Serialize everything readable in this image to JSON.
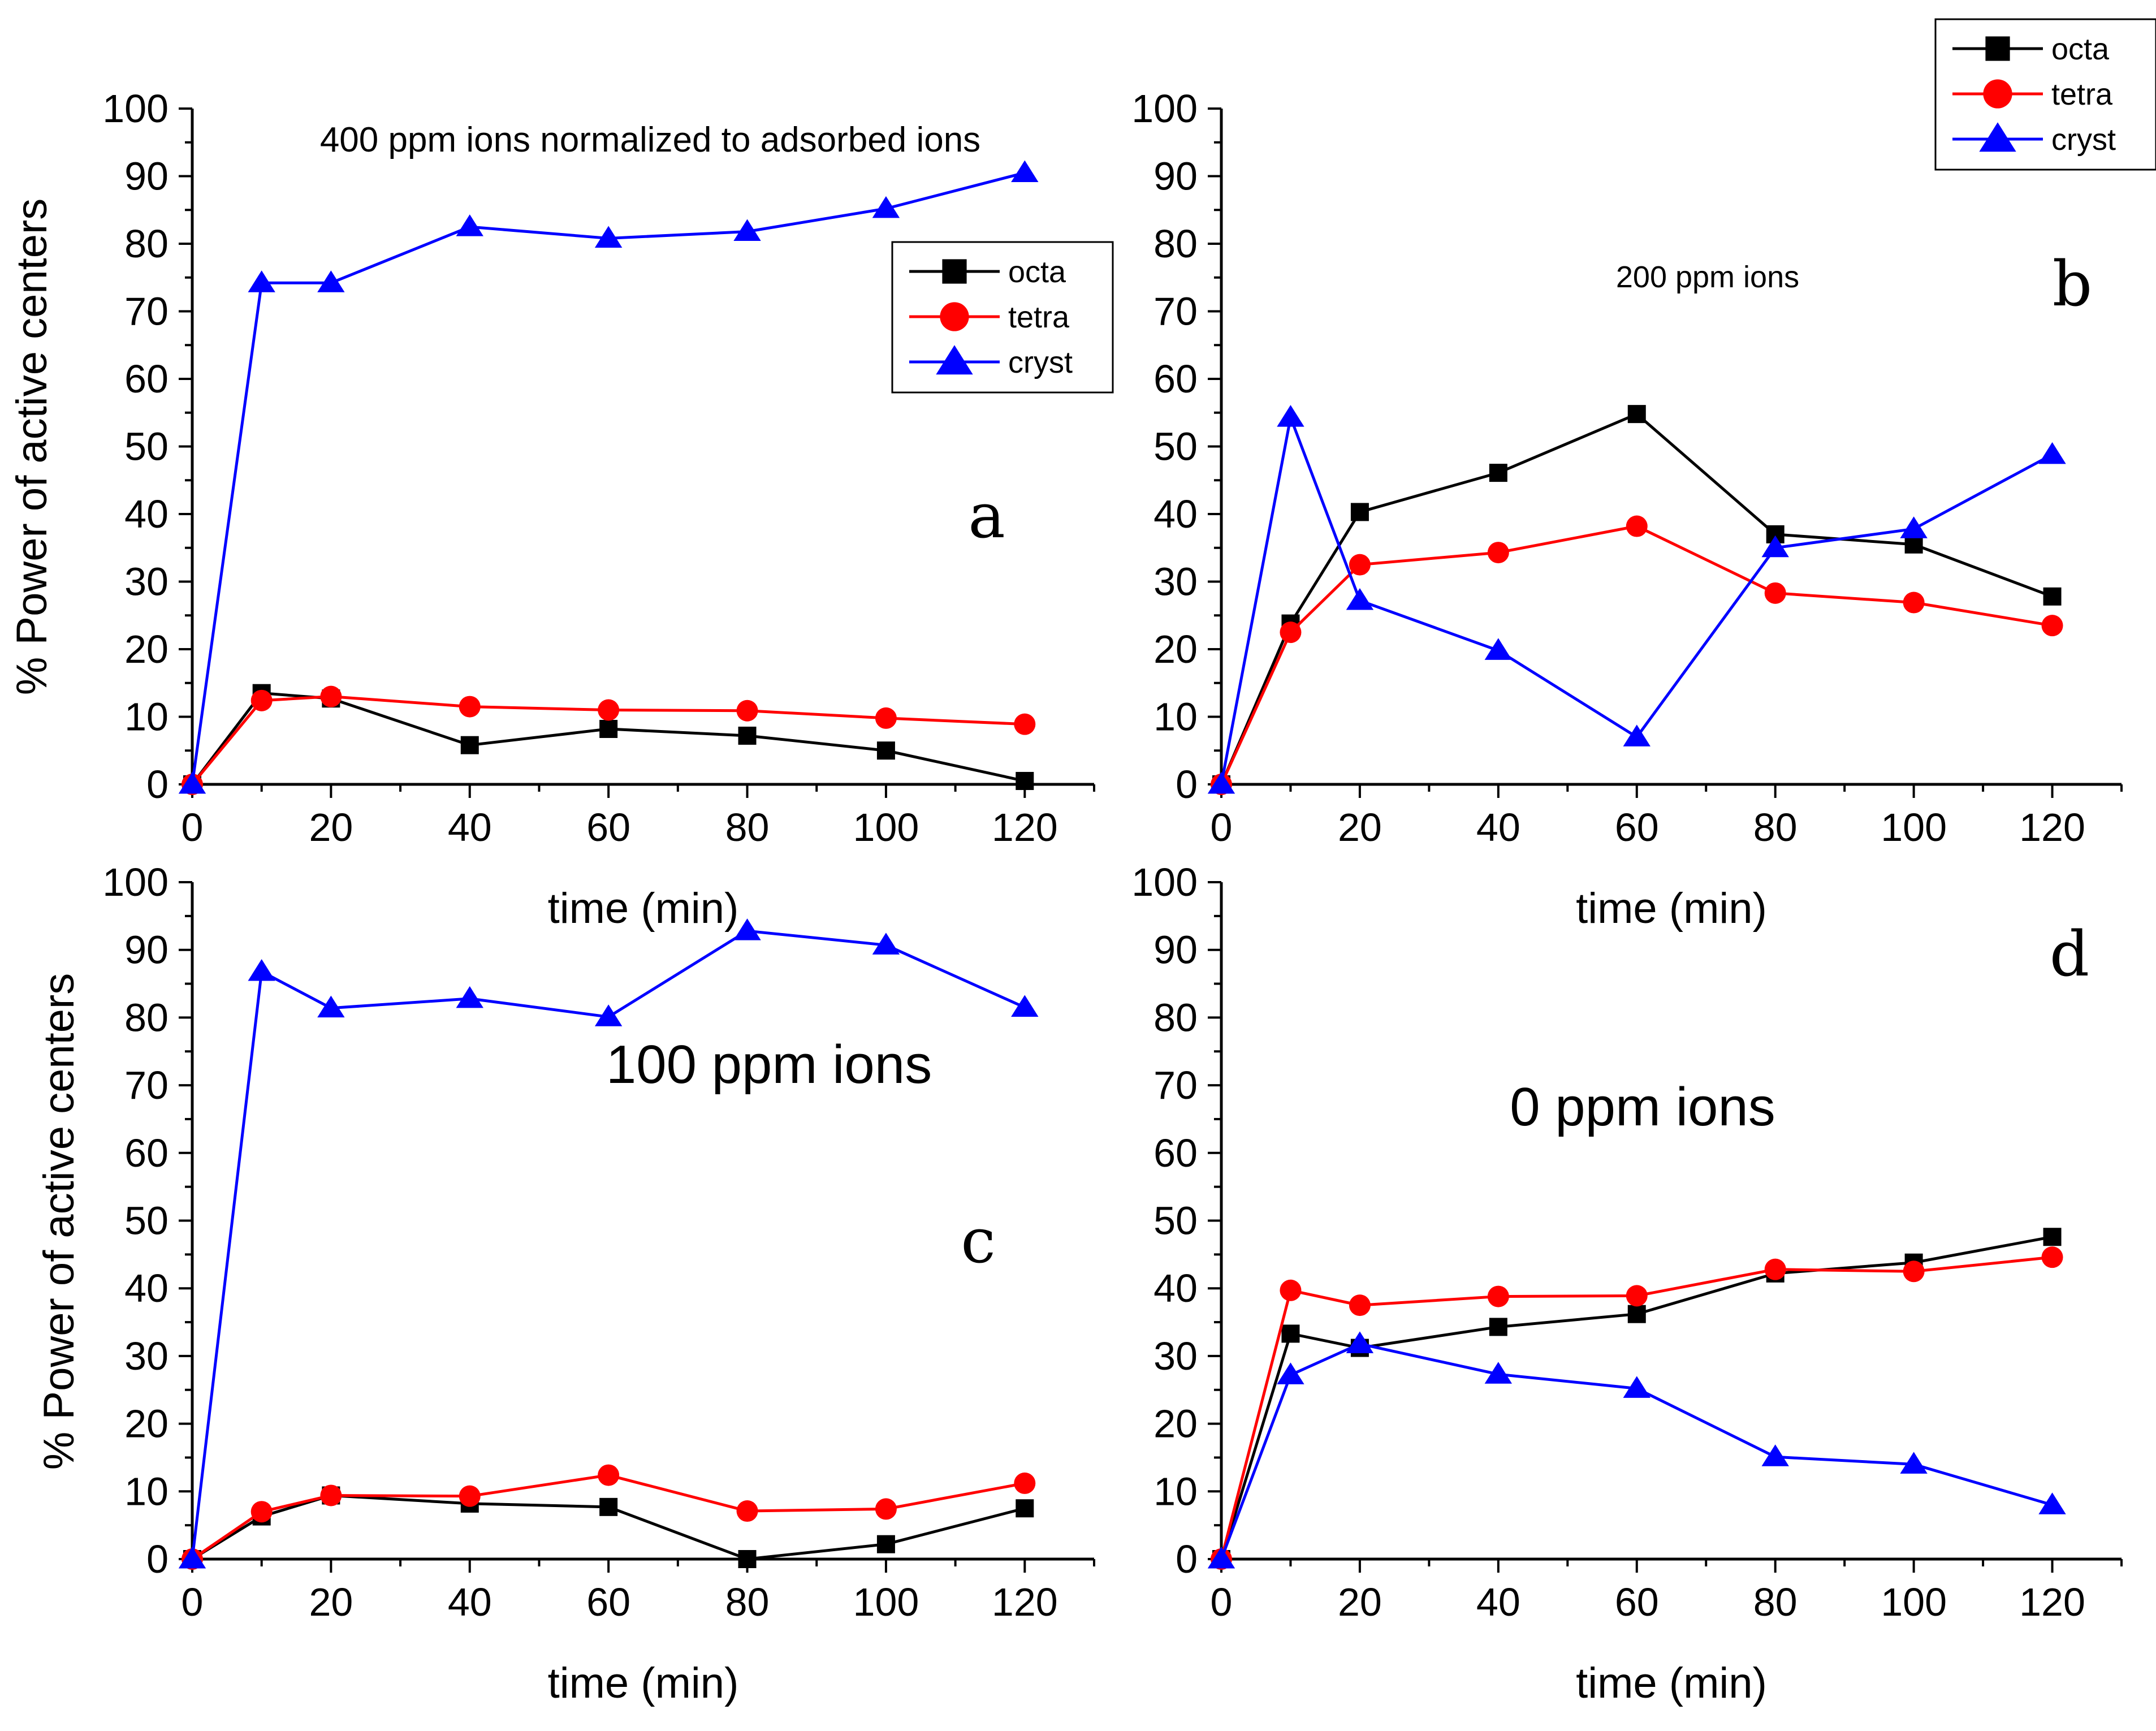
{
  "figure": {
    "y_axis_title": "% Power of active  centers",
    "x_axis_title": "time (min)"
  },
  "series_style": {
    "octa": {
      "color": "#000000",
      "marker": "square"
    },
    "tetra": {
      "color": "#ff0000",
      "marker": "circle"
    },
    "cryst": {
      "color": "#0000ff",
      "marker": "triangle"
    }
  },
  "chart_data": [
    {
      "panel": "a",
      "type": "line",
      "title": "400 ppm ions normalized to adsorbed ions",
      "xlabel": "time (min)",
      "ylabel": "% Power of active  centers",
      "xlim": [
        0,
        130
      ],
      "ylim": [
        0,
        100
      ],
      "xticks": [
        0,
        20,
        40,
        60,
        80,
        100,
        120
      ],
      "yticks": [
        0,
        10,
        20,
        30,
        40,
        50,
        60,
        70,
        80,
        90,
        100
      ],
      "legend": [
        "octa",
        "tetra",
        "cryst"
      ],
      "x": [
        0,
        10,
        20,
        40,
        60,
        80,
        100,
        120
      ],
      "series": [
        {
          "name": "octa",
          "values": [
            0,
            13.5,
            12.7,
            5.8,
            8.2,
            7.2,
            5.0,
            0.5
          ]
        },
        {
          "name": "tetra",
          "values": [
            0,
            12.4,
            13.0,
            11.5,
            11.0,
            10.9,
            9.8,
            8.9
          ]
        },
        {
          "name": "cryst",
          "values": [
            0,
            74.2,
            74.2,
            82.5,
            80.8,
            81.8,
            85.2,
            90.5
          ]
        }
      ]
    },
    {
      "panel": "b",
      "type": "line",
      "title": "200 ppm ions",
      "xlabel": "time (min)",
      "ylabel": "",
      "xlim": [
        0,
        130
      ],
      "ylim": [
        0,
        100
      ],
      "xticks": [
        0,
        20,
        40,
        60,
        80,
        100,
        120
      ],
      "yticks": [
        0,
        10,
        20,
        30,
        40,
        50,
        60,
        70,
        80,
        90,
        100
      ],
      "legend": [
        "octa",
        "tetra",
        "cryst"
      ],
      "x": [
        0,
        10,
        20,
        40,
        60,
        80,
        100,
        120
      ],
      "series": [
        {
          "name": "octa",
          "values": [
            0,
            23.8,
            40.3,
            46.1,
            54.8,
            37.0,
            35.5,
            27.8
          ]
        },
        {
          "name": "tetra",
          "values": [
            0,
            22.5,
            32.5,
            34.3,
            38.2,
            28.3,
            26.9,
            23.5
          ]
        },
        {
          "name": "cryst",
          "values": [
            0,
            54.3,
            27.2,
            19.8,
            7.0,
            35.0,
            37.8,
            48.8
          ]
        }
      ]
    },
    {
      "panel": "c",
      "type": "line",
      "title": "100 ppm ions",
      "xlabel": "time (min)",
      "ylabel": "% Power of active  centers",
      "xlim": [
        0,
        130
      ],
      "ylim": [
        0,
        100
      ],
      "xticks": [
        0,
        20,
        40,
        60,
        80,
        100,
        120
      ],
      "yticks": [
        0,
        10,
        20,
        30,
        40,
        50,
        60,
        70,
        80,
        90,
        100
      ],
      "legend": [],
      "x": [
        0,
        10,
        20,
        40,
        60,
        80,
        100,
        120
      ],
      "series": [
        {
          "name": "octa",
          "values": [
            0,
            6.3,
            9.4,
            8.2,
            7.7,
            0.0,
            2.2,
            7.5
          ]
        },
        {
          "name": "tetra",
          "values": [
            0,
            7.0,
            9.4,
            9.3,
            12.4,
            7.1,
            7.4,
            11.2
          ]
        },
        {
          "name": "cryst",
          "values": [
            0,
            86.8,
            81.4,
            82.8,
            80.1,
            92.8,
            90.7,
            81.5
          ]
        }
      ]
    },
    {
      "panel": "d",
      "type": "line",
      "title": "0 ppm ions",
      "xlabel": "time (min)",
      "ylabel": "",
      "xlim": [
        0,
        130
      ],
      "ylim": [
        0,
        100
      ],
      "xticks": [
        0,
        20,
        40,
        60,
        80,
        100,
        120
      ],
      "yticks": [
        0,
        10,
        20,
        30,
        40,
        50,
        60,
        70,
        80,
        90,
        100
      ],
      "legend": [],
      "x": [
        0,
        10,
        20,
        40,
        60,
        80,
        100,
        120
      ],
      "series": [
        {
          "name": "octa",
          "values": [
            0,
            33.3,
            31.2,
            34.3,
            36.2,
            42.2,
            43.8,
            47.6
          ]
        },
        {
          "name": "tetra",
          "values": [
            0,
            39.7,
            37.5,
            38.8,
            38.9,
            42.8,
            42.5,
            44.6
          ]
        },
        {
          "name": "cryst",
          "values": [
            0,
            27.2,
            31.8,
            27.3,
            25.2,
            15.1,
            14.0,
            8.0
          ]
        }
      ]
    }
  ]
}
